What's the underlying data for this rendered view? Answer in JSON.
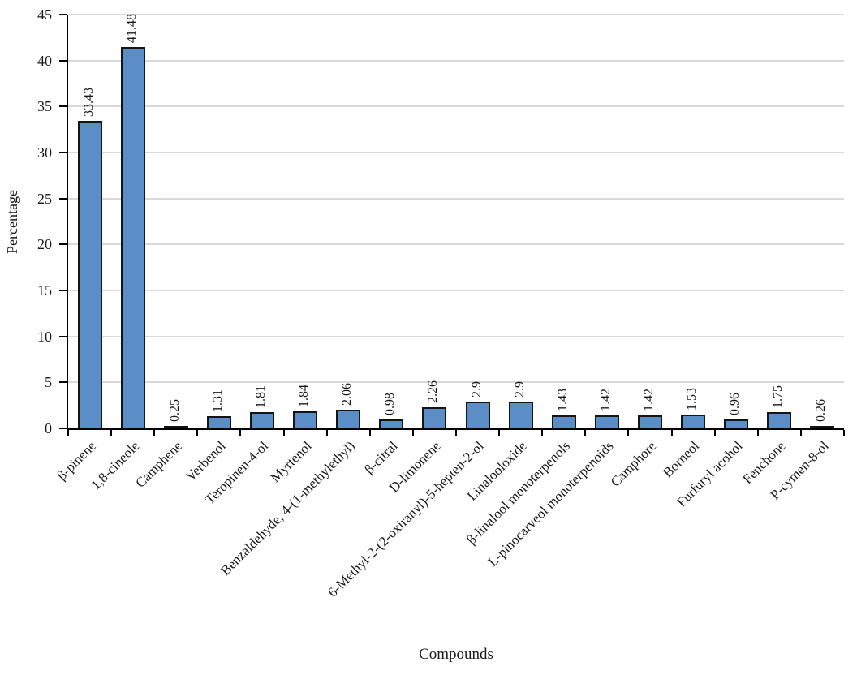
{
  "chart_data": {
    "type": "bar",
    "title": "",
    "xlabel": "Compounds",
    "ylabel": "Percentage",
    "ylim": [
      0,
      45
    ],
    "ytick_step": 5,
    "yticks": [
      0,
      5,
      10,
      15,
      20,
      25,
      30,
      35,
      40,
      45
    ],
    "grid": true,
    "legend": "none",
    "categories": [
      "β-pinene",
      "1,8-cineole",
      "Camphene",
      "Verbenol",
      "Teropinen-4-ol",
      "Myrtenol",
      "Benzaldehyde, 4-(1-methylethyl)",
      "β-citral",
      "D-limonene",
      "6-Methyl-2-(2-oxiranyl)-5-hepten-2-ol",
      "Linalooloxide",
      "β-linalool monoterpenols",
      "L-pinocarveol monoterpenoids",
      "Camphore",
      "Borneol",
      "Furfuryl acohol",
      "Fenchone",
      "P-cymen-8-ol"
    ],
    "values": [
      33.43,
      41.48,
      0.25,
      1.31,
      1.81,
      1.84,
      2.06,
      0.98,
      2.26,
      2.9,
      2.9,
      1.43,
      1.42,
      1.42,
      1.53,
      0.96,
      1.75,
      0.26
    ],
    "value_labels": [
      "33.43",
      "41.48",
      "0.25",
      "1.31",
      "1.81",
      "1.84",
      "2.06",
      "0.98",
      "2.26",
      "2.9",
      "2.9",
      "1.43",
      "1.42",
      "1.42",
      "1.53",
      "0.96",
      "1.75",
      "0.26"
    ],
    "bar_color": "#5b8ec7",
    "bar_border_color": "#141414",
    "gridline_color": "#d9d9d9",
    "axis_color": "#000000",
    "text_color": "#1a1a1a"
  }
}
